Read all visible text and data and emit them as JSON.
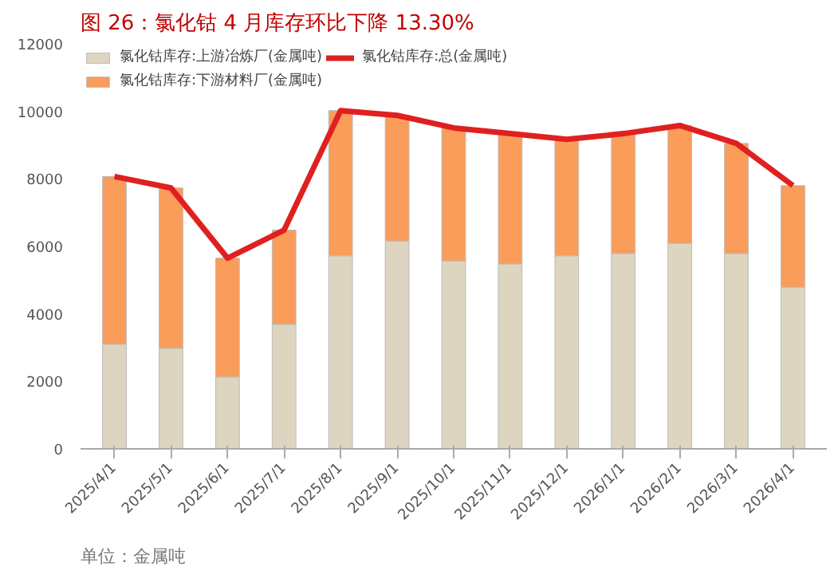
{
  "chart_data": {
    "type": "bar",
    "title": "图 26：氯化钴 4 月库存环比下降 13.30%",
    "stacked": true,
    "categories": [
      "2025/4/1",
      "2025/5/1",
      "2025/6/1",
      "2025/7/1",
      "2025/8/1",
      "2025/9/1",
      "2025/10/1",
      "2025/11/1",
      "2025/12/1",
      "2026/1/1",
      "2026/2/1",
      "2026/3/1",
      "2026/4/1"
    ],
    "series": [
      {
        "name": "氯化钴库存:上游冶炼厂(金属吨)",
        "color": "#ddd5bf",
        "values": [
          3100,
          2980,
          2130,
          3690,
          5720,
          6160,
          5570,
          5480,
          5720,
          5790,
          6090,
          5790,
          4790
        ]
      },
      {
        "name": "氯化钴库存:下游材料厂(金属吨)",
        "color": "#fa9c5a",
        "values": [
          4970,
          4750,
          3520,
          2790,
          4300,
          3720,
          3940,
          3860,
          3450,
          3550,
          3490,
          3260,
          3010
        ]
      },
      {
        "name": "氯化钴库存:总(金属吨)",
        "type": "line",
        "color": "#e02020",
        "values": [
          8070,
          7730,
          5650,
          6480,
          10020,
          9880,
          9510,
          9340,
          9170,
          9340,
          9580,
          9050,
          7800
        ]
      }
    ],
    "ylim": [
      0,
      12000
    ],
    "yticks": [
      0,
      2000,
      4000,
      6000,
      8000,
      10000,
      12000
    ],
    "grid": false,
    "legend": "top",
    "annotations": [
      "单位：金属吨"
    ]
  }
}
